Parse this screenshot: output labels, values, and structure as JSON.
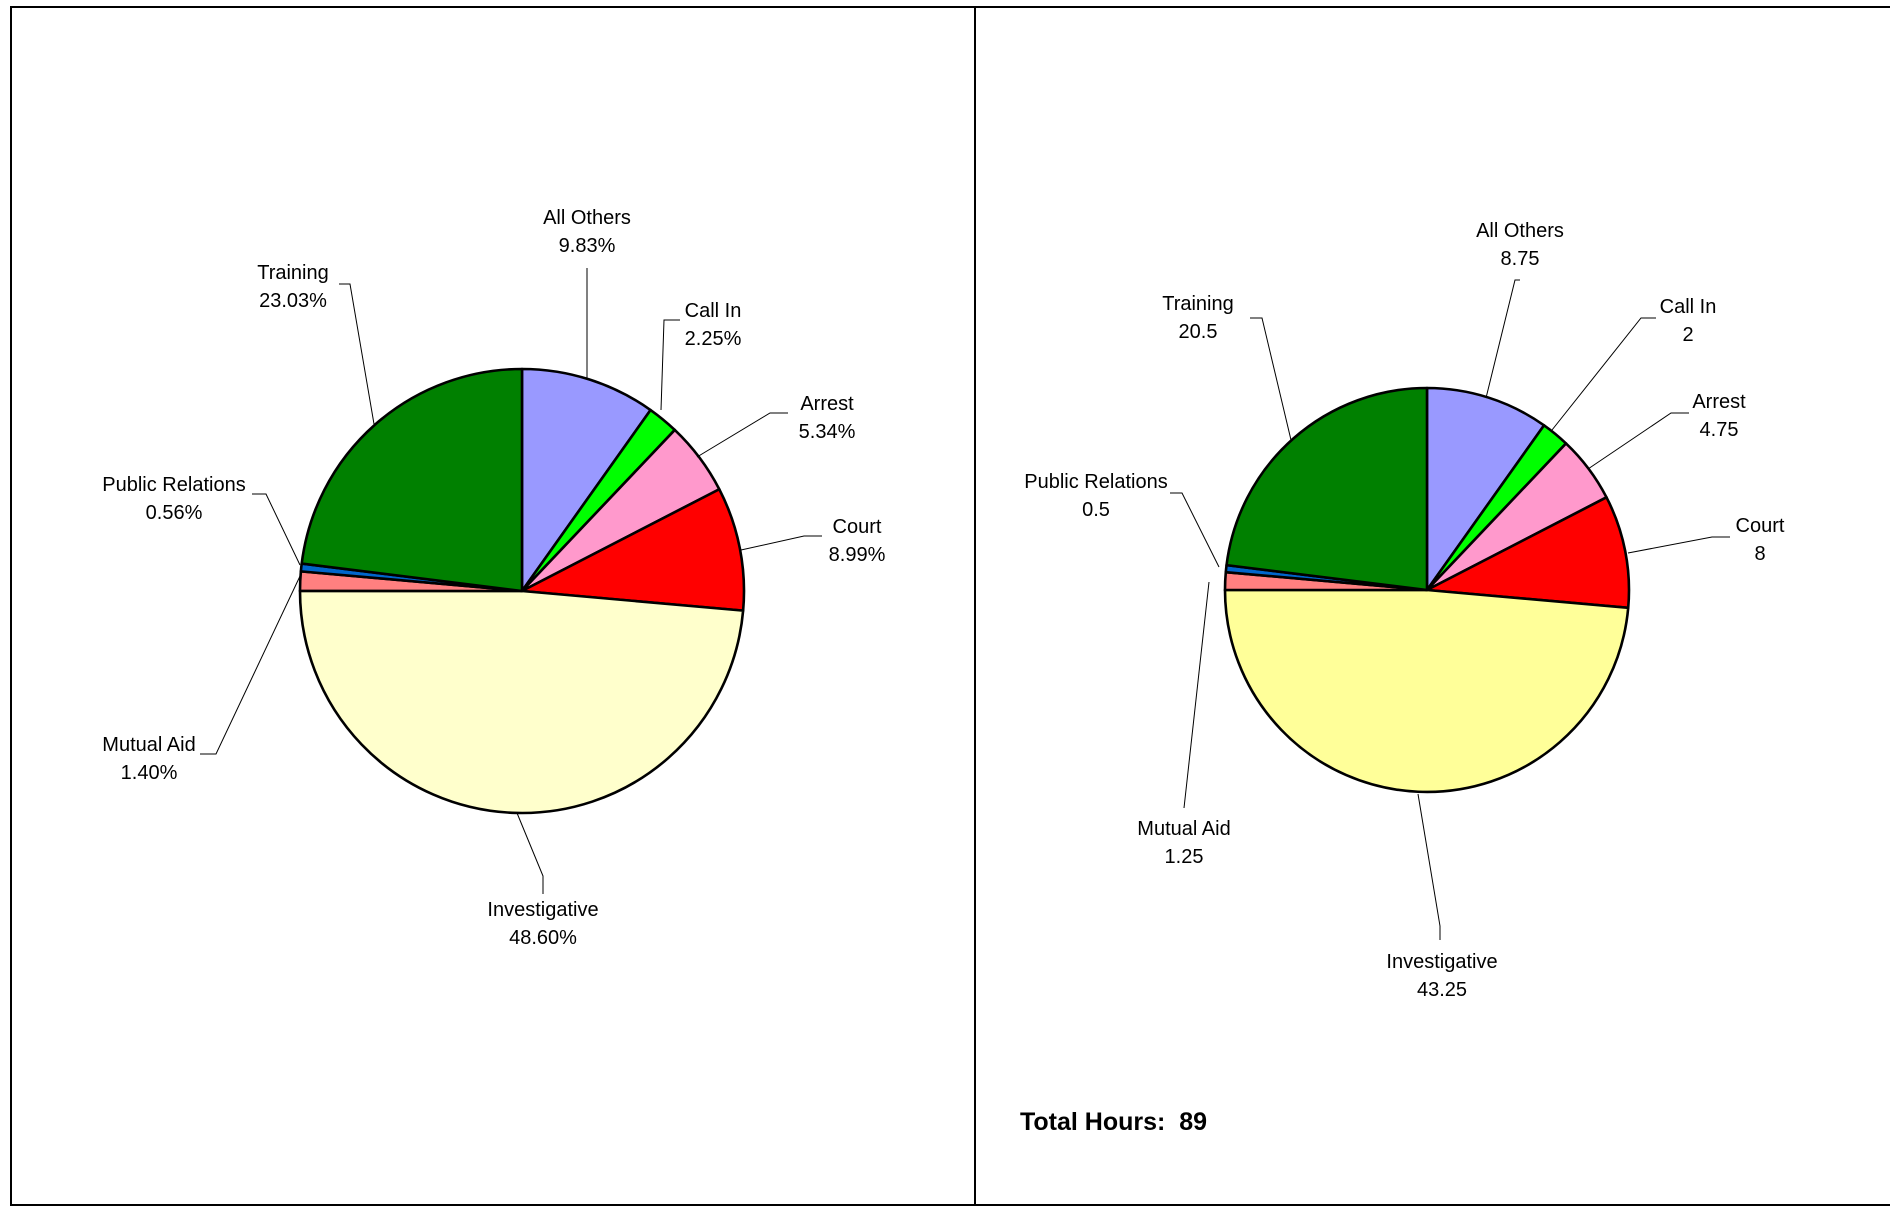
{
  "chart_data": [
    {
      "type": "pie",
      "label_format": "percent",
      "slices": [
        {
          "label": "All Others",
          "value_text": "9.83%",
          "value": 9.83,
          "color": "#9999FF"
        },
        {
          "label": "Call In",
          "value_text": "2.25%",
          "value": 2.25,
          "color": "#00FF00"
        },
        {
          "label": "Arrest",
          "value_text": "5.34%",
          "value": 5.34,
          "color": "#FF99CC"
        },
        {
          "label": "Court",
          "value_text": "8.99%",
          "value": 8.99,
          "color": "#FF0000"
        },
        {
          "label": "Investigative",
          "value_text": "48.60%",
          "value": 48.6,
          "color": "#FFFFCC"
        },
        {
          "label": "Mutual Aid",
          "value_text": "1.40%",
          "value": 1.4,
          "color": "#FF8080"
        },
        {
          "label": "Public Relations",
          "value_text": "0.56%",
          "value": 0.56,
          "color": "#0066CC"
        },
        {
          "label": "Training",
          "value_text": "23.03%",
          "value": 23.03,
          "color": "#008000"
        }
      ]
    },
    {
      "type": "pie",
      "label_format": "hours",
      "slices": [
        {
          "label": "All Others",
          "value_text": "8.75",
          "value": 8.75,
          "color": "#9999FF"
        },
        {
          "label": "Call In",
          "value_text": "2",
          "value": 2,
          "color": "#00FF00"
        },
        {
          "label": "Arrest",
          "value_text": "4.75",
          "value": 4.75,
          "color": "#FF99CC"
        },
        {
          "label": "Court",
          "value_text": "8",
          "value": 8,
          "color": "#FF0000"
        },
        {
          "label": "Investigative",
          "value_text": "43.25",
          "value": 43.25,
          "color": "#FFFF99"
        },
        {
          "label": "Mutual Aid",
          "value_text": "1.25",
          "value": 1.25,
          "color": "#FF8080"
        },
        {
          "label": "Public Relations",
          "value_text": "0.5",
          "value": 0.5,
          "color": "#0066CC"
        },
        {
          "label": "Training",
          "value_text": "20.5",
          "value": 20.5,
          "color": "#008000"
        }
      ]
    }
  ],
  "summary": {
    "total_label": "Total Hours:",
    "total_value": "89"
  }
}
